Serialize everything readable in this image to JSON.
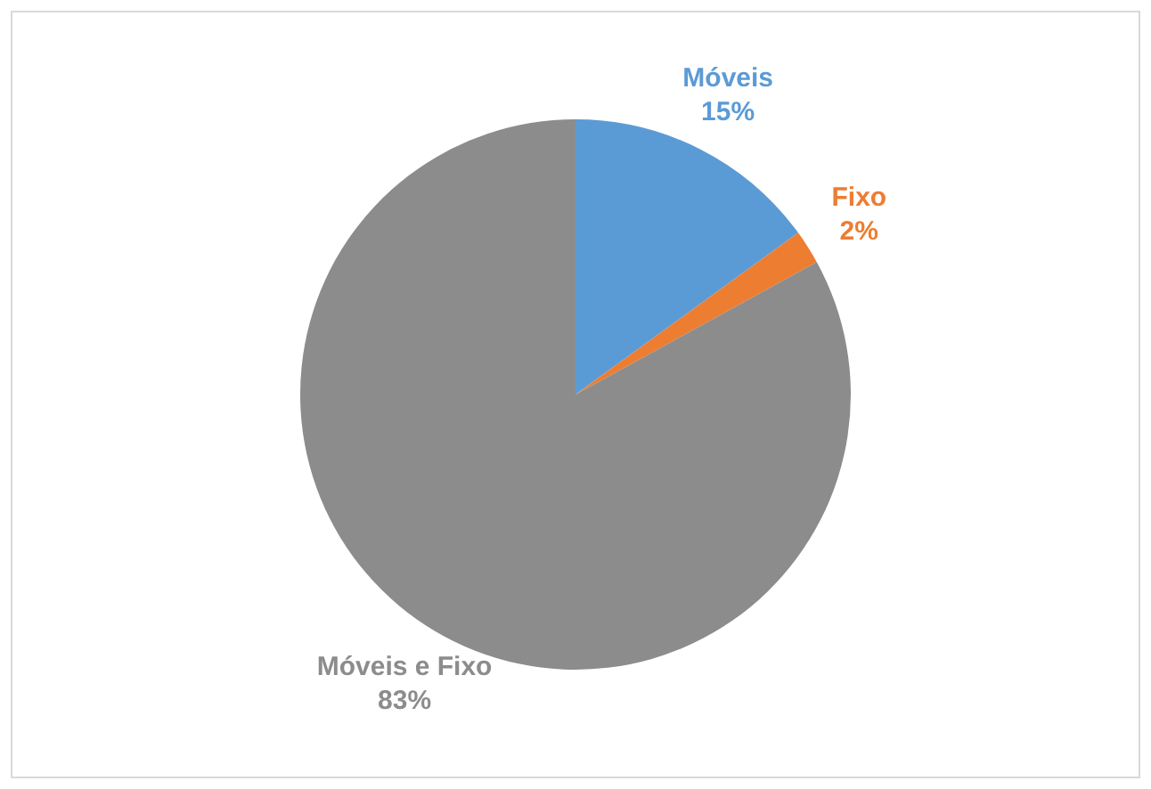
{
  "chart_data": {
    "type": "pie",
    "categories": [
      "Móveis",
      "Fixo",
      "Móveis e Fixo"
    ],
    "values": [
      15,
      2,
      83
    ],
    "value_labels": [
      "15%",
      "2%",
      "83%"
    ],
    "colors": [
      "#5b9bd5",
      "#ed7d31",
      "#8c8c8c"
    ],
    "legend": false
  }
}
